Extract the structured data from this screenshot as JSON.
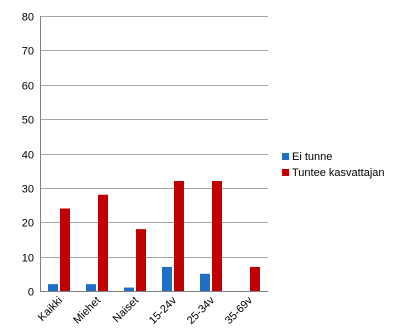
{
  "chart_data": {
    "type": "bar",
    "title": "",
    "xlabel": "",
    "ylabel": "",
    "ylim": [
      0,
      80
    ],
    "yticks": [
      0,
      10,
      20,
      30,
      40,
      50,
      60,
      70,
      80
    ],
    "grid": true,
    "legend_position": "right",
    "categories": [
      "Kaikki",
      "Miehet",
      "Naiset",
      "15-24v",
      "25-34v",
      "35-69v"
    ],
    "series": [
      {
        "name": "Ei tunne",
        "color": "#1f6fc5",
        "values": [
          2,
          2,
          1,
          7,
          5,
          0
        ]
      },
      {
        "name": "Tuntee kasvattajan",
        "color": "#c00000",
        "values": [
          24,
          28,
          18,
          32,
          32,
          7
        ]
      }
    ]
  }
}
